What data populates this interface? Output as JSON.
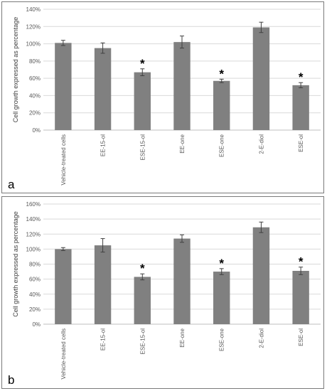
{
  "chart_data": [
    {
      "type": "bar",
      "panel_label": "a",
      "categories": [
        "Vehicle-treated cells",
        "EE-15-ol",
        "ESE-15-ol",
        "EE-one",
        "ESE-one",
        "2-E-diol",
        "ESE-ol"
      ],
      "values": [
        101,
        95,
        67,
        102,
        57,
        119,
        52
      ],
      "errors": [
        3,
        6,
        4,
        7,
        2,
        6,
        3
      ],
      "significance": [
        "",
        "",
        "*",
        "",
        "*",
        "",
        "*"
      ],
      "ylabel": "Cell growth expressed as percentage",
      "ylim": [
        0,
        140
      ],
      "yticks": [
        "0%",
        "20%",
        "40%",
        "60%",
        "80%",
        "100%",
        "120%",
        "140%"
      ],
      "bar_color": "#808080",
      "grid": true
    },
    {
      "type": "bar",
      "panel_label": "b",
      "categories": [
        "Vehicle-treated cells",
        "EE-15-ol",
        "ESE-15-ol",
        "EE-one",
        "ESE-one",
        "2-E-diol",
        "ESE-ol"
      ],
      "values": [
        100,
        105,
        63,
        114,
        70,
        129,
        71
      ],
      "errors": [
        2,
        9,
        4,
        5,
        4,
        7,
        5
      ],
      "significance": [
        "",
        "",
        "*",
        "",
        "*",
        "",
        "*"
      ],
      "ylabel": "Cell growth expressed as percentage",
      "ylim": [
        0,
        160
      ],
      "yticks": [
        "0%",
        "20%",
        "40%",
        "60%",
        "80%",
        "100%",
        "120%",
        "140%",
        "160%"
      ],
      "bar_color": "#808080",
      "grid": true
    }
  ]
}
